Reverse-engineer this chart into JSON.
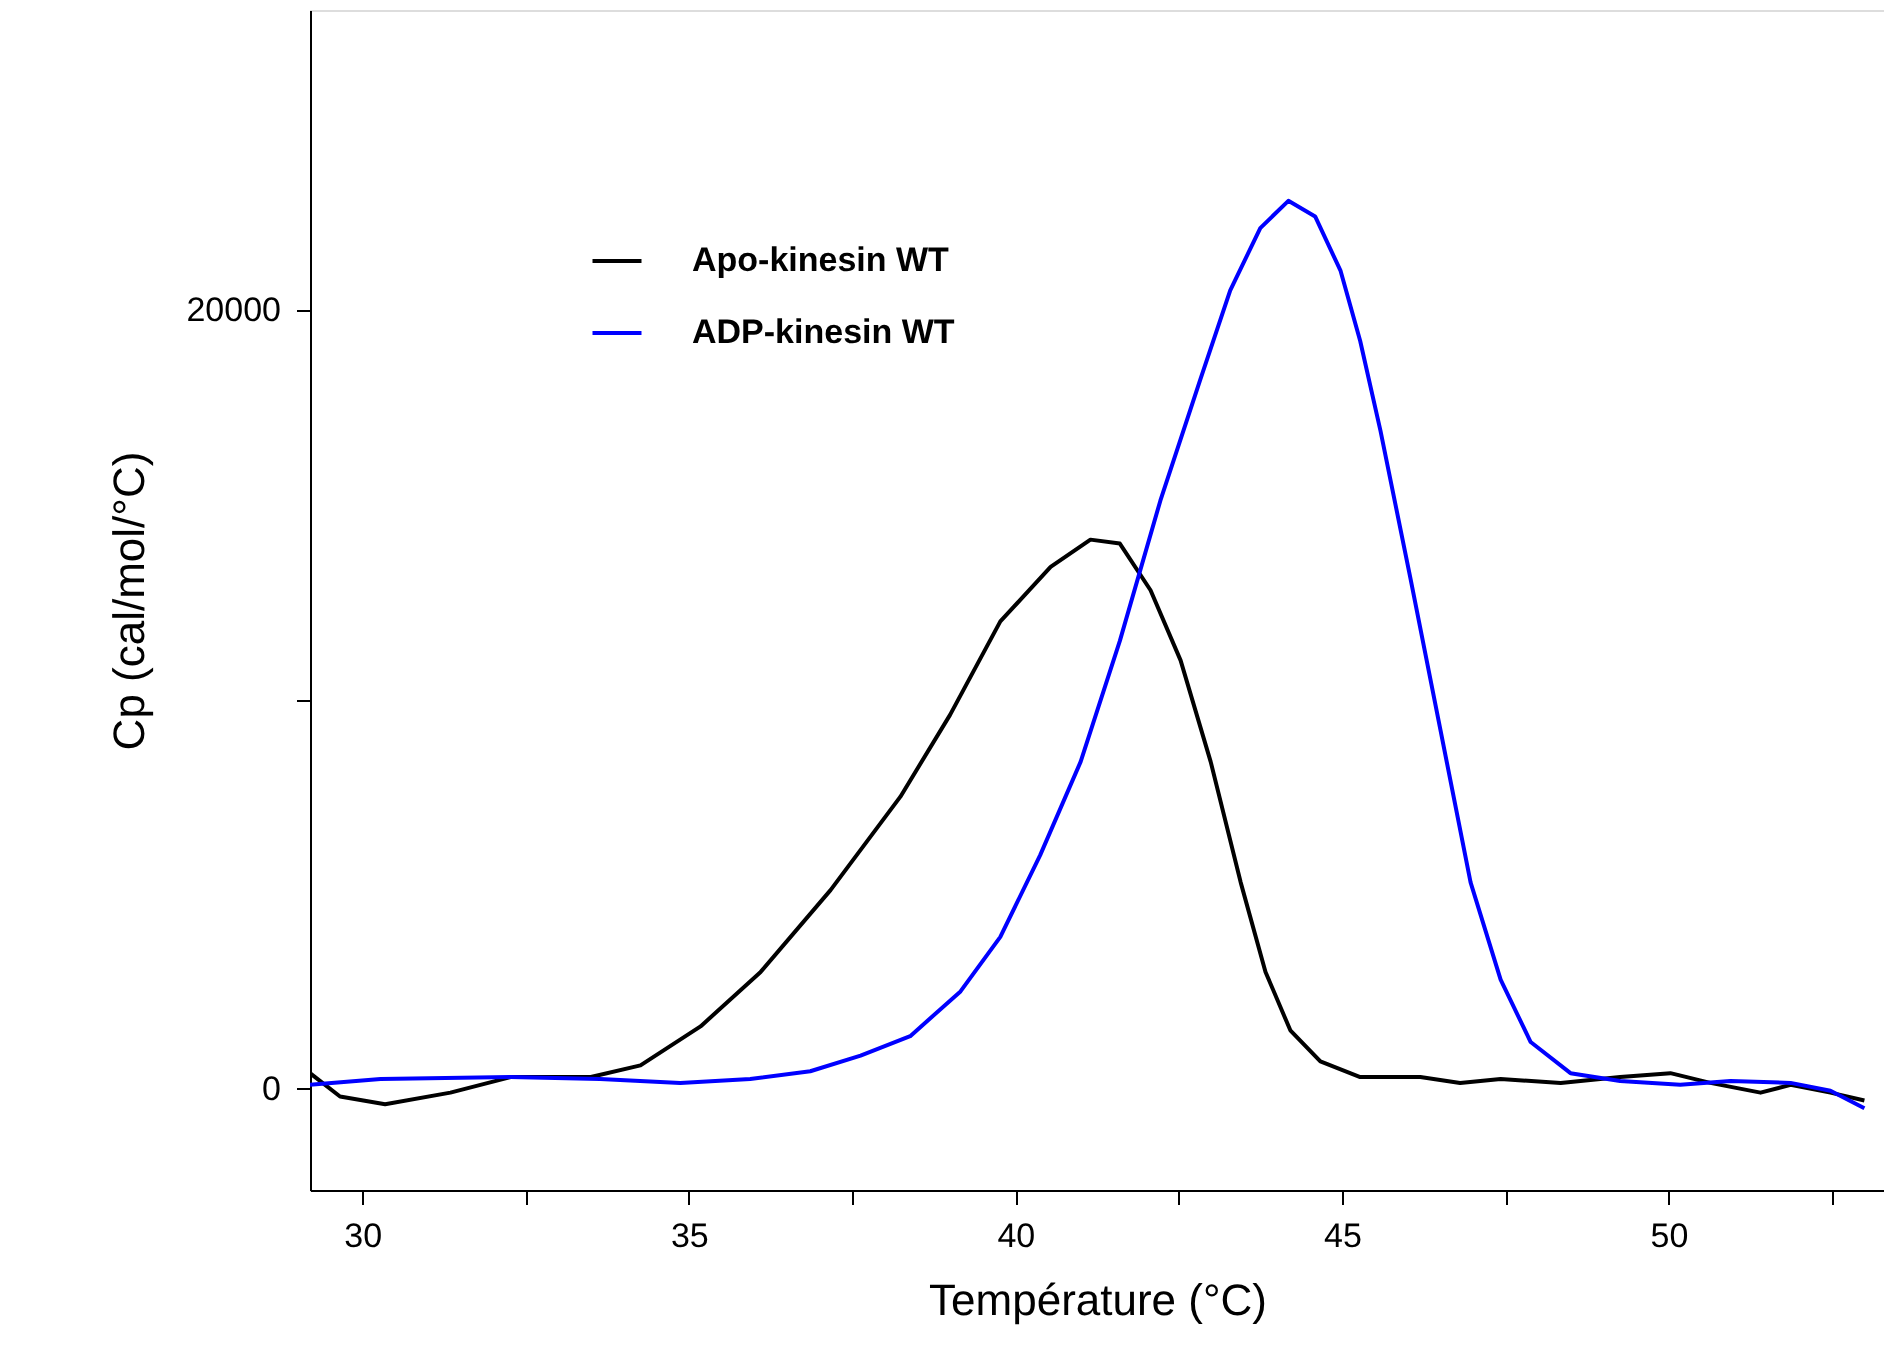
{
  "chart_data": {
    "type": "line",
    "xlabel": "Température (°C)",
    "ylabel": "Cp (cal/mol/°C)",
    "xlim": [
      29.2,
      53.3
    ],
    "ylim": [
      -2600,
      27700
    ],
    "xticks": [
      30,
      {
        "value": 32.5,
        "label": null
      },
      35,
      {
        "value": 37.5,
        "label": null
      },
      40,
      {
        "value": 42.5,
        "label": null
      },
      45,
      {
        "value": 47.5,
        "label": null
      },
      50,
      {
        "value": 52.5,
        "label": null
      }
    ],
    "yticks": [
      0,
      {
        "value": 10000,
        "label": null
      },
      20000
    ],
    "grid": false,
    "legend": "top left",
    "line_style": "solid",
    "marker": "none",
    "series": [
      {
        "name": "Apo-kinesin WT",
        "color": "#000000",
        "x": [
          29.2,
          29.66,
          30.35,
          31.35,
          32.27,
          33.5,
          34.26,
          35.18,
          36.1,
          37.17,
          38.24,
          39.0,
          39.77,
          40.54,
          41.15,
          41.6,
          42.07,
          42.53,
          42.99,
          43.45,
          43.83,
          44.21,
          44.67,
          45.28,
          46.2,
          46.81,
          47.43,
          48.35,
          49.26,
          50.03,
          50.64,
          51.41,
          51.87,
          52.48,
          53.0
        ],
        "values": [
          400,
          -200,
          -400,
          -100,
          300,
          300,
          600,
          1600,
          3000,
          5100,
          7500,
          9600,
          12000,
          13400,
          14100,
          14000,
          12800,
          11000,
          8400,
          5300,
          3000,
          1500,
          700,
          300,
          300,
          150,
          250,
          150,
          300,
          400,
          150,
          -100,
          100,
          -100,
          -300
        ]
      },
      {
        "name": "ADP-kinesin WT",
        "color": "#0000ff",
        "x": [
          29.2,
          30.28,
          32.27,
          33.64,
          34.87,
          35.94,
          36.86,
          37.63,
          38.39,
          39.16,
          39.77,
          40.38,
          41.0,
          41.6,
          42.22,
          42.83,
          43.29,
          43.75,
          44.18,
          44.59,
          44.98,
          45.28,
          45.59,
          46.05,
          46.51,
          46.97,
          47.43,
          47.89,
          48.5,
          49.26,
          50.18,
          50.95,
          51.87,
          52.48,
          53.0
        ],
        "values": [
          100,
          250,
          300,
          250,
          150,
          250,
          450,
          850,
          1350,
          2500,
          3900,
          6000,
          8400,
          11500,
          15100,
          18200,
          20500,
          22100,
          22800,
          22400,
          21000,
          19200,
          16900,
          13100,
          9200,
          5300,
          2800,
          1200,
          400,
          200,
          100,
          200,
          150,
          -50,
          -500
        ]
      }
    ]
  }
}
